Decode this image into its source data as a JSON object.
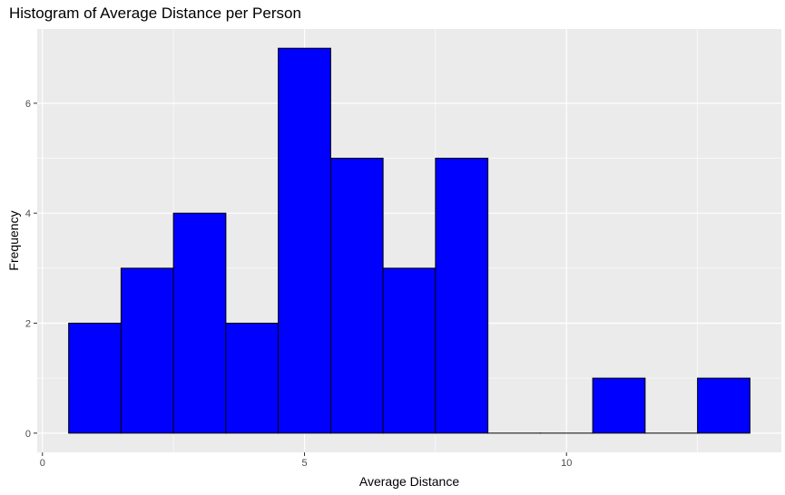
{
  "chart_data": {
    "type": "bar",
    "title": "Histogram of Average Distance per Person",
    "xlabel": "Average Distance",
    "ylabel": "Frequency",
    "xlim": [
      -0.1,
      14.1
    ],
    "ylim": [
      -0.35,
      7.35
    ],
    "bin_width": 1,
    "bins": [
      {
        "x": 1,
        "count": 2
      },
      {
        "x": 2,
        "count": 3
      },
      {
        "x": 3,
        "count": 4
      },
      {
        "x": 4,
        "count": 2
      },
      {
        "x": 5,
        "count": 7
      },
      {
        "x": 6,
        "count": 5
      },
      {
        "x": 7,
        "count": 3
      },
      {
        "x": 8,
        "count": 5
      },
      {
        "x": 9,
        "count": 0
      },
      {
        "x": 10,
        "count": 0
      },
      {
        "x": 11,
        "count": 1
      },
      {
        "x": 12,
        "count": 0
      },
      {
        "x": 13,
        "count": 1
      }
    ],
    "x_ticks": [
      0,
      5,
      10
    ],
    "y_ticks": [
      0,
      2,
      4,
      6
    ],
    "x_tick_labels": [
      "0",
      "5",
      "10"
    ],
    "y_tick_labels": [
      "0",
      "2",
      "4",
      "6"
    ],
    "grid": true,
    "colors": {
      "bar_fill": "#0000ff",
      "bar_outline": "#000000",
      "panel_bg": "#ebebeb",
      "grid": "#ffffff"
    }
  }
}
